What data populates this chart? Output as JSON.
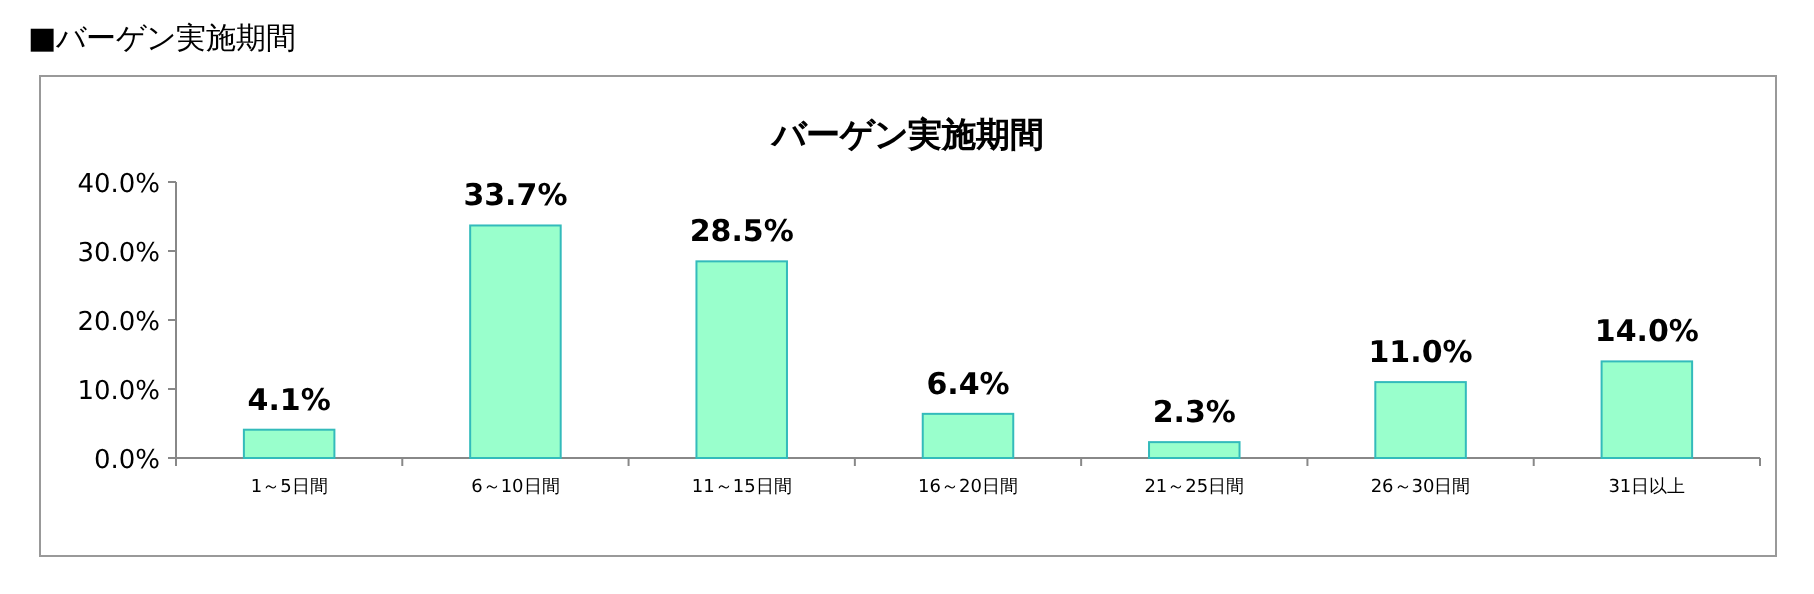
{
  "chart_data": {
    "type": "bar",
    "title": "バーゲン実施期間",
    "annotations": [
      "■バーゲン実施期間"
    ],
    "categories": [
      "1～5日間",
      "6～10日間",
      "11～15日間",
      "16～20日間",
      "21～25日間",
      "26～30日間",
      "31日以上"
    ],
    "values": [
      4.1,
      33.7,
      28.5,
      6.4,
      2.3,
      11.0,
      14.0
    ],
    "value_labels": [
      "4.1%",
      "33.7%",
      "28.5%",
      "6.4%",
      "2.3%",
      "11.0%",
      "14.0%"
    ],
    "color": "#99ffcc",
    "ylim": [
      0,
      40
    ],
    "yticks": [
      {
        "value": 0,
        "label": "0.0%"
      },
      {
        "value": 10,
        "label": "10.0%"
      },
      {
        "value": 20,
        "label": "20.0%"
      },
      {
        "value": 30,
        "label": "30.0%"
      },
      {
        "value": 40,
        "label": "40.0%"
      }
    ],
    "grid": false
  }
}
